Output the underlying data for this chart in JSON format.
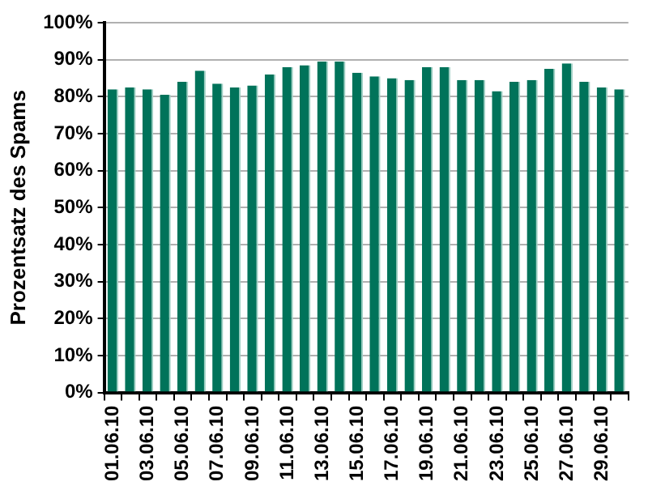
{
  "chart_data": {
    "type": "bar",
    "ylabel": "Prozentsatz des Spams",
    "categories": [
      "01.06.10",
      null,
      "03.06.10",
      null,
      "05.06.10",
      null,
      "07.06.10",
      null,
      "09.06.10",
      null,
      "11.06.10",
      null,
      "13.06.10",
      null,
      "15.06.10",
      null,
      "17.06.10",
      null,
      "19.06.10",
      null,
      "21.06.10",
      null,
      "23.06.10",
      null,
      "25.06.10",
      null,
      "27.06.10",
      null,
      "29.06.10",
      null
    ],
    "values": [
      82,
      82.5,
      82,
      80.5,
      84,
      87,
      83.5,
      82.5,
      83,
      86,
      88,
      88.5,
      89.5,
      89.5,
      86.5,
      85.5,
      85,
      84.5,
      88,
      88,
      84.5,
      84.5,
      81.5,
      84,
      84.5,
      87.5,
      89,
      84,
      82.5,
      82
    ],
    "color": "#00735a",
    "ylim": [
      0,
      100
    ],
    "yticks": [
      {
        "value": 0,
        "label": "0%"
      },
      {
        "value": 10,
        "label": "10%"
      },
      {
        "value": 20,
        "label": "20%"
      },
      {
        "value": 30,
        "label": "30%"
      },
      {
        "value": 40,
        "label": "40%"
      },
      {
        "value": 50,
        "label": "50%"
      },
      {
        "value": 60,
        "label": "60%"
      },
      {
        "value": 70,
        "label": "70%"
      },
      {
        "value": 80,
        "label": "80%"
      },
      {
        "value": 90,
        "label": "90%"
      },
      {
        "value": 100,
        "label": "100%"
      }
    ],
    "grid": "y",
    "legend": false
  }
}
